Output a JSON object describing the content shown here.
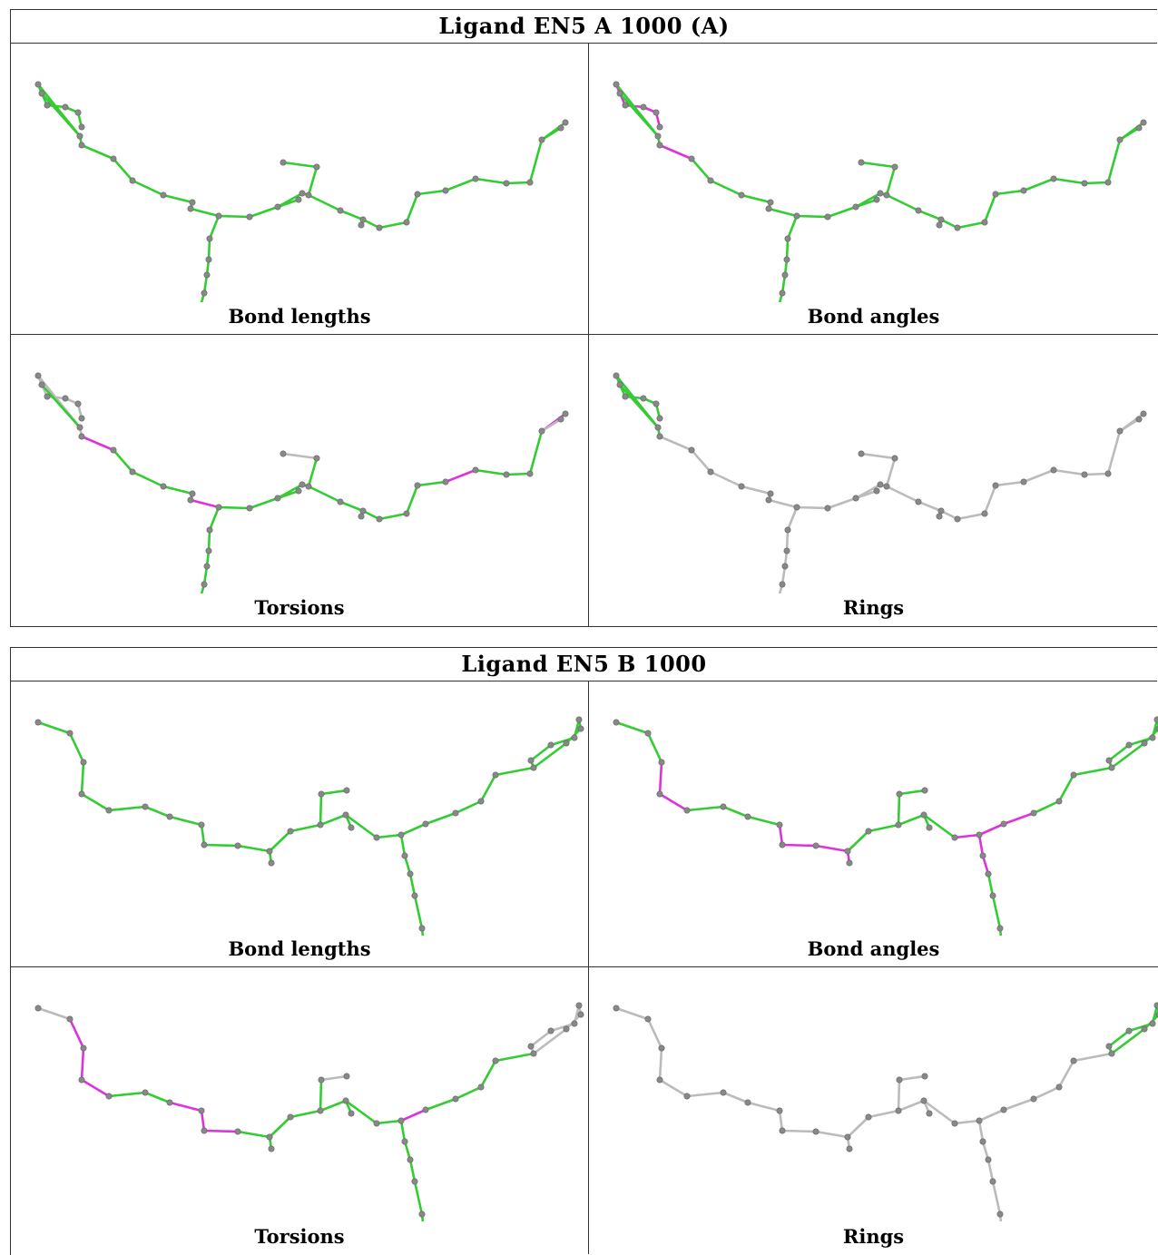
{
  "ligands": [
    {
      "title": "Ligand EN5 A 1000 (A)"
    },
    {
      "title": "Ligand EN5 B 1000"
    }
  ],
  "captions": {
    "bond_lengths": "Bond lengths",
    "bond_angles": "Bond angles",
    "torsions": "Torsions",
    "rings": "Rings"
  },
  "colors": {
    "ok_bond": "#33cc33",
    "outlier_bond": "#dd33dd",
    "inactive_bond": "#bbbbbb",
    "atom": "#888888",
    "border": "#333333"
  }
}
